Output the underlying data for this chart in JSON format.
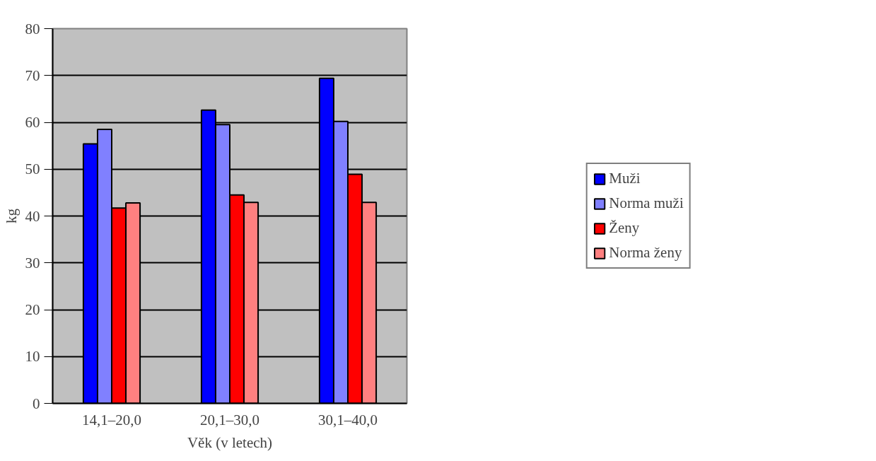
{
  "chart_data": {
    "type": "bar",
    "xlabel": "Věk (v letech)",
    "ylabel": "kg",
    "categories": [
      "14,1–20,0",
      "20,1–30,0",
      "30,1–40,0"
    ],
    "series": [
      {
        "name": "Muži",
        "color": "#0000ff",
        "values": [
          55.4,
          62.6,
          69.4
        ]
      },
      {
        "name": "Norma muži",
        "color": "#8080ff",
        "values": [
          58.5,
          59.5,
          60.2
        ]
      },
      {
        "name": "Ženy",
        "color": "#ff0000",
        "values": [
          41.7,
          44.5,
          48.9
        ]
      },
      {
        "name": "Norma ženy",
        "color": "#ff8080",
        "values": [
          42.8,
          42.9,
          42.9
        ]
      }
    ],
    "ylim": [
      0,
      80
    ],
    "yticks": [
      0,
      10,
      20,
      30,
      40,
      50,
      60,
      70,
      80
    ],
    "grid": "y",
    "legend": "right"
  }
}
